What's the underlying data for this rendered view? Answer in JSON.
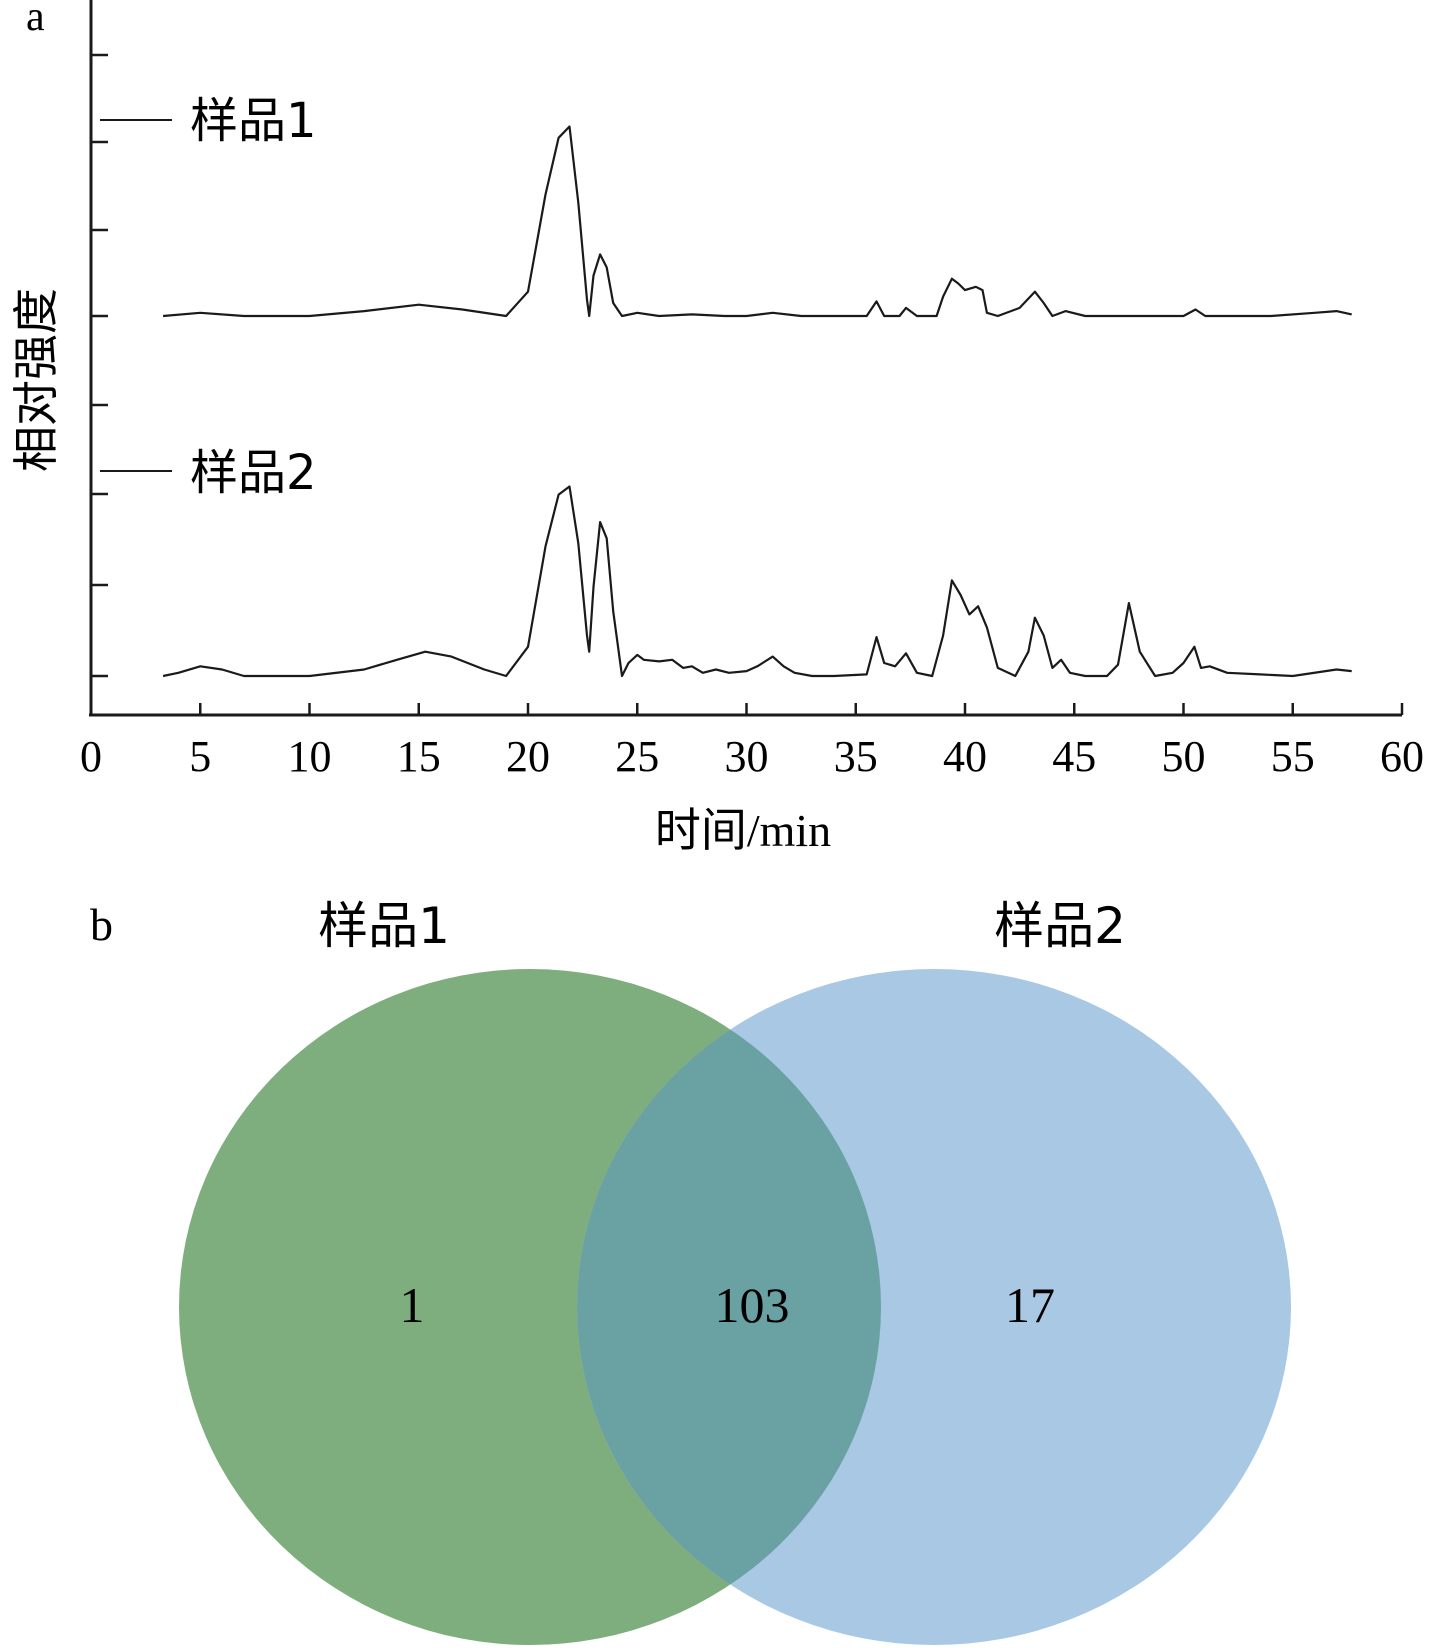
{
  "panel_a": {
    "label": "a",
    "chart_data": {
      "type": "line",
      "xlabel": "时间/min",
      "ylabel": "相对强度",
      "xlim": [
        0,
        60
      ],
      "x_ticks": [
        "0",
        "5",
        "10",
        "15",
        "20",
        "25",
        "30",
        "35",
        "40",
        "45",
        "50",
        "55",
        "60"
      ],
      "series": [
        {
          "name": "样品1",
          "x": [
            3.3,
            5.0,
            7.0,
            10.0,
            12.5,
            15.0,
            17.0,
            19.0,
            20.0,
            20.8,
            21.4,
            21.9,
            22.3,
            22.7,
            22.8,
            23.0,
            23.3,
            23.6,
            23.9,
            24.3,
            25.0,
            26.0,
            27.5,
            29.0,
            30.0,
            31.2,
            32.5,
            34.0,
            35.5,
            35.95,
            36.3,
            37.0,
            37.3,
            37.8,
            38.7,
            39.0,
            39.4,
            39.7,
            40.0,
            40.5,
            40.8,
            41.0,
            41.5,
            42.5,
            43.2,
            43.6,
            44.0,
            44.6,
            45.5,
            47.0,
            48.5,
            50.0,
            50.55,
            51.0,
            52.5,
            54.0,
            56.0,
            57.0,
            57.7
          ],
          "y": [
            0.0,
            0.02,
            0.0,
            0.0,
            0.03,
            0.07,
            0.04,
            0.0,
            0.15,
            0.75,
            1.1,
            1.17,
            0.7,
            0.1,
            0.0,
            0.25,
            0.38,
            0.3,
            0.08,
            0.0,
            0.02,
            0.0,
            0.01,
            0.0,
            0.0,
            0.02,
            0.0,
            0.0,
            0.0,
            0.09,
            0.0,
            0.0,
            0.05,
            0.0,
            0.0,
            0.12,
            0.23,
            0.2,
            0.16,
            0.18,
            0.16,
            0.02,
            0.0,
            0.05,
            0.15,
            0.08,
            0.0,
            0.03,
            0.0,
            0.0,
            0.0,
            0.0,
            0.04,
            0.0,
            0.0,
            0.0,
            0.02,
            0.03,
            0.01
          ]
        },
        {
          "name": "样品2",
          "x": [
            3.3,
            4.0,
            5.0,
            6.0,
            7.0,
            10.0,
            12.5,
            14.0,
            15.3,
            16.5,
            18.0,
            19.0,
            20.0,
            20.8,
            21.4,
            21.9,
            22.3,
            22.7,
            22.8,
            23.0,
            23.3,
            23.6,
            23.9,
            24.3,
            24.6,
            25.0,
            25.3,
            26.0,
            26.6,
            27.1,
            27.5,
            28.0,
            28.6,
            29.2,
            30.0,
            30.5,
            31.2,
            31.7,
            32.2,
            33.0,
            34.0,
            35.5,
            35.95,
            36.3,
            36.8,
            37.3,
            37.8,
            38.5,
            39.0,
            39.4,
            39.8,
            40.2,
            40.6,
            41.0,
            41.5,
            42.3,
            42.9,
            43.2,
            43.6,
            44.0,
            44.4,
            44.8,
            45.5,
            46.5,
            47.0,
            47.5,
            48.0,
            48.7,
            49.5,
            50.0,
            50.5,
            50.8,
            51.2,
            52.0,
            53.5,
            55.0,
            57.0,
            57.7
          ],
          "y": [
            0.0,
            0.02,
            0.06,
            0.04,
            0.0,
            0.0,
            0.04,
            0.1,
            0.15,
            0.12,
            0.04,
            0.0,
            0.18,
            0.8,
            1.12,
            1.17,
            0.82,
            0.25,
            0.15,
            0.55,
            0.95,
            0.85,
            0.4,
            0.0,
            0.08,
            0.13,
            0.1,
            0.09,
            0.1,
            0.05,
            0.06,
            0.02,
            0.04,
            0.02,
            0.03,
            0.06,
            0.12,
            0.06,
            0.02,
            0.0,
            0.0,
            0.01,
            0.24,
            0.08,
            0.06,
            0.14,
            0.02,
            0.0,
            0.25,
            0.59,
            0.5,
            0.38,
            0.43,
            0.3,
            0.05,
            0.0,
            0.15,
            0.36,
            0.25,
            0.05,
            0.1,
            0.02,
            0.0,
            0.0,
            0.07,
            0.45,
            0.15,
            0.0,
            0.02,
            0.08,
            0.18,
            0.05,
            0.06,
            0.02,
            0.01,
            0.0,
            0.04,
            0.03
          ]
        }
      ]
    }
  },
  "panel_b": {
    "label": "b",
    "chart_data": {
      "type": "venn",
      "sets": [
        {
          "name": "样品1",
          "color": "#7fae7e"
        },
        {
          "name": "样品2",
          "color": "#a8c8e3"
        }
      ],
      "overlap_color": "#6aa1a3",
      "values": {
        "only_set1": "1",
        "intersection": "103",
        "only_set2": "17"
      }
    }
  }
}
